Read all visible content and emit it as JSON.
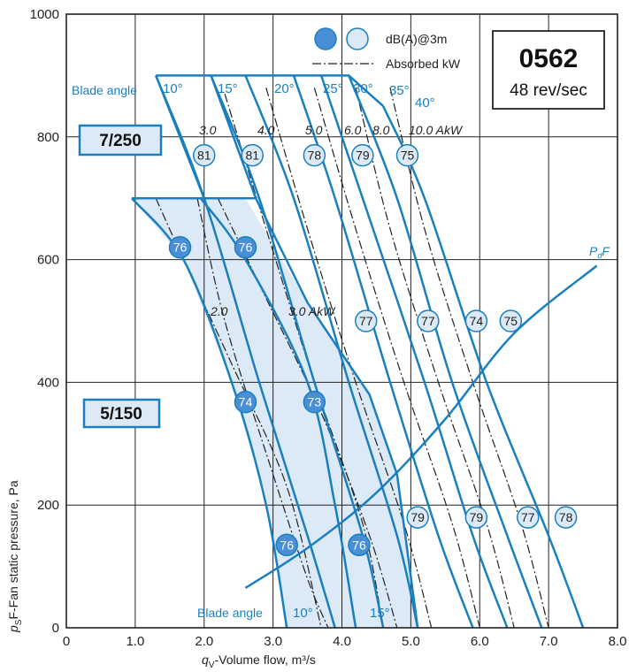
{
  "chart_data": {
    "type": "line",
    "model_box": {
      "code": "0562",
      "speed": "48 rev/sec"
    },
    "legend": {
      "db_label": "dB(A)@3m",
      "kw_label": "Absorbed kW"
    },
    "xlabel_main": "-Volume flow, m³/s",
    "xlabel_sym": "q",
    "xlabel_sub": "V",
    "ylabel_main": "F-Fan static pressure, Pa",
    "ylabel_sym": "p",
    "ylabel_sub": "S",
    "xlim": [
      0,
      8.0
    ],
    "ylim": [
      0,
      1000
    ],
    "x_ticks": [
      "0",
      "1.0",
      "2.0",
      "3.0",
      "4.0",
      "5.0",
      "6.0",
      "7.0",
      "8.0"
    ],
    "y_ticks": [
      "0",
      "200",
      "400",
      "600",
      "800",
      "1000"
    ],
    "grid": true,
    "boxes": [
      {
        "label": "7/250",
        "y": 800
      },
      {
        "label": "5/150",
        "y": 350
      }
    ],
    "blade_angle_title": "Blade angle",
    "blade_angles_top": [
      "10°",
      "15°",
      "20°",
      "25°",
      "30°",
      "35°",
      "40°"
    ],
    "blade_angles_bottom": [
      "10°",
      "15°"
    ],
    "pdf_label": {
      "sym": "P",
      "sub": "d",
      "tail": "F"
    },
    "power_labels_top": [
      "3.0",
      "4.0",
      "5.0",
      "6.0",
      "8.0",
      "10.0 AkW"
    ],
    "power_labels_bottom": [
      "2.0",
      "3.0 AkW"
    ],
    "series_7_250": [
      {
        "angle": "10°",
        "points": [
          [
            1.3,
            900
          ],
          [
            2.0,
            700
          ],
          [
            2.8,
            400
          ],
          [
            3.5,
            150
          ],
          [
            3.9,
            0
          ]
        ]
      },
      {
        "angle": "15°",
        "points": [
          [
            2.1,
            900
          ],
          [
            2.8,
            700
          ],
          [
            3.6,
            400
          ],
          [
            4.3,
            150
          ],
          [
            4.6,
            0
          ]
        ]
      },
      {
        "angle": "20°",
        "points": [
          [
            2.6,
            900
          ],
          [
            3.3,
            700
          ],
          [
            4.1,
            400
          ],
          [
            4.8,
            150
          ],
          [
            5.1,
            0
          ]
        ]
      },
      {
        "angle": "25°",
        "points": [
          [
            3.3,
            900
          ],
          [
            3.9,
            700
          ],
          [
            4.7,
            400
          ],
          [
            5.4,
            150
          ],
          [
            5.9,
            0
          ]
        ]
      },
      {
        "angle": "30°",
        "points": [
          [
            3.7,
            900
          ],
          [
            4.3,
            700
          ],
          [
            5.2,
            400
          ],
          [
            5.9,
            150
          ],
          [
            6.4,
            0
          ]
        ]
      },
      {
        "angle": "35°",
        "points": [
          [
            4.1,
            900
          ],
          [
            4.8,
            700
          ],
          [
            5.6,
            400
          ],
          [
            6.4,
            150
          ],
          [
            6.9,
            0
          ]
        ]
      },
      {
        "angle": "40°",
        "points": [
          [
            4.6,
            850
          ],
          [
            5.2,
            700
          ],
          [
            6.1,
            400
          ],
          [
            7.0,
            150
          ],
          [
            7.5,
            0
          ]
        ]
      }
    ],
    "series_5_150": [
      {
        "angle": "10°",
        "points": [
          [
            0.95,
            700
          ],
          [
            1.7,
            600
          ],
          [
            2.4,
            400
          ],
          [
            2.9,
            200
          ],
          [
            3.2,
            0
          ]
        ]
      },
      {
        "angle": "15°",
        "points": [
          [
            1.95,
            700
          ],
          [
            2.6,
            600
          ],
          [
            3.5,
            400
          ],
          [
            3.9,
            200
          ],
          [
            4.2,
            0
          ]
        ]
      }
    ],
    "pdf_curve": [
      [
        2.6,
        65
      ],
      [
        3.5,
        130
      ],
      [
        4.5,
        220
      ],
      [
        5.5,
        340
      ],
      [
        6.5,
        480
      ],
      [
        7.7,
        590
      ]
    ],
    "db_markers": [
      {
        "x": 2.0,
        "y": 770,
        "label": "81",
        "filled": false
      },
      {
        "x": 2.7,
        "y": 770,
        "label": "81",
        "filled": false
      },
      {
        "x": 3.6,
        "y": 770,
        "label": "78",
        "filled": false
      },
      {
        "x": 4.3,
        "y": 770,
        "label": "79",
        "filled": false
      },
      {
        "x": 4.95,
        "y": 770,
        "label": "75",
        "filled": false
      },
      {
        "x": 1.65,
        "y": 620,
        "label": "76",
        "filled": true
      },
      {
        "x": 2.6,
        "y": 620,
        "label": "76",
        "filled": true
      },
      {
        "x": 4.35,
        "y": 500,
        "label": "77",
        "filled": false
      },
      {
        "x": 5.25,
        "y": 500,
        "label": "77",
        "filled": false
      },
      {
        "x": 5.95,
        "y": 500,
        "label": "74",
        "filled": false
      },
      {
        "x": 6.45,
        "y": 500,
        "label": "75",
        "filled": false
      },
      {
        "x": 2.6,
        "y": 368,
        "label": "74",
        "filled": true
      },
      {
        "x": 3.6,
        "y": 368,
        "label": "73",
        "filled": true
      },
      {
        "x": 5.1,
        "y": 180,
        "label": "79",
        "filled": false
      },
      {
        "x": 5.95,
        "y": 180,
        "label": "79",
        "filled": false
      },
      {
        "x": 6.7,
        "y": 180,
        "label": "77",
        "filled": false
      },
      {
        "x": 7.25,
        "y": 180,
        "label": "78",
        "filled": false
      },
      {
        "x": 3.2,
        "y": 135,
        "label": "76",
        "filled": true
      },
      {
        "x": 4.25,
        "y": 135,
        "label": "76",
        "filled": true
      }
    ]
  },
  "colors": {
    "blue": "#1a7fc1",
    "fill_light": "#dce9f6",
    "marker_fill": "#4a8fd6",
    "grid": "#222222"
  }
}
